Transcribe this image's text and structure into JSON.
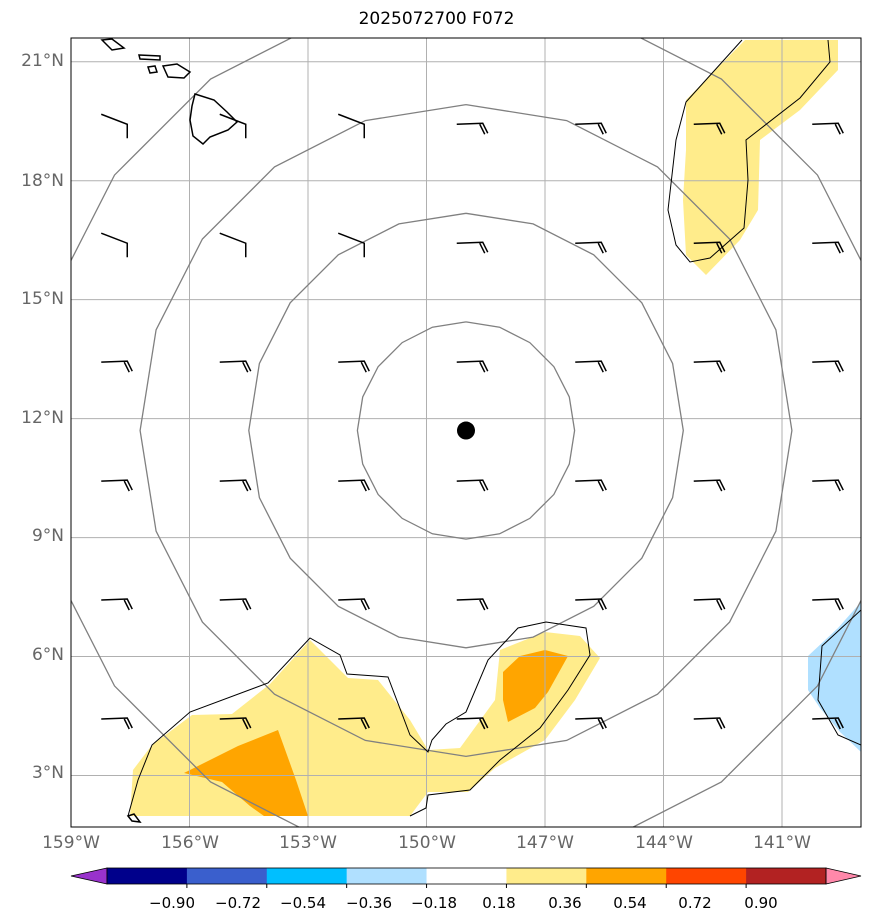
{
  "title": "2025072700 F072",
  "map": {
    "lat_labels": [
      "21°N",
      "18°N",
      "15°N",
      "12°N",
      "9°N",
      "6°N",
      "3°N"
    ],
    "lat_values": [
      21,
      18,
      15,
      12,
      9,
      6,
      3
    ],
    "lon_labels": [
      "159°W",
      "156°W",
      "153°W",
      "150°W",
      "147°W",
      "144°W",
      "141°W"
    ],
    "lon_values": [
      -159,
      -156,
      -153,
      -150,
      -147,
      -144,
      -141
    ],
    "extent": {
      "lon_min": -159,
      "lon_max": -139,
      "lat_min": 1.7,
      "lat_max": 21.6
    },
    "center_marker": {
      "lon": -149.0,
      "lat": 11.7
    },
    "range_rings_deg": [
      2.75,
      5.5,
      8.25,
      11.0
    ],
    "colors": {
      "grid": "#b0b0b0",
      "rings": "#808080",
      "coast": "#000000",
      "marker": "#000000"
    }
  },
  "colorbar": {
    "ticks": [
      "−0.90",
      "−0.72",
      "−0.54",
      "−0.36",
      "−0.18",
      "0.18",
      "0.36",
      "0.54",
      "0.72",
      "0.90"
    ],
    "colors": [
      "#9932cc",
      "#00008b",
      "#3a5fcd",
      "#00bfff",
      "#b0e0ff",
      "#ffffff",
      "#ffec8b",
      "#ffa500",
      "#ff4500",
      "#b22222",
      "#ff88aa"
    ]
  }
}
